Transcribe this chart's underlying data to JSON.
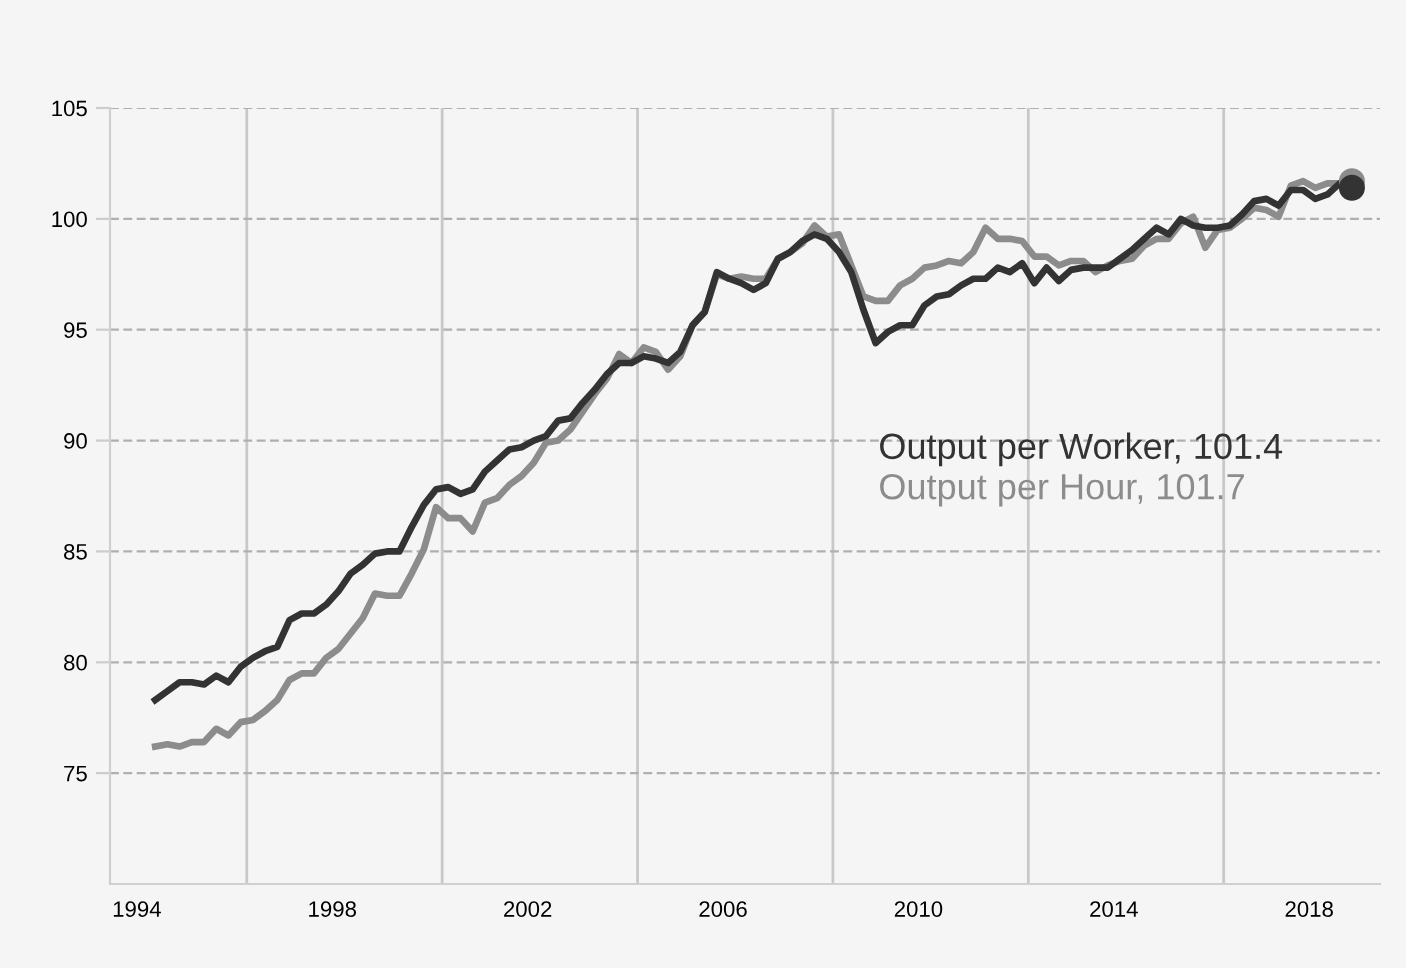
{
  "chart_data": {
    "type": "line",
    "x": [
      1994.375,
      1994.625,
      1994.875,
      1995.125,
      1995.375,
      1995.625,
      1995.875,
      1996.125,
      1996.375,
      1996.625,
      1996.875,
      1997.125,
      1997.375,
      1997.625,
      1997.875,
      1998.125,
      1998.375,
      1998.625,
      1998.875,
      1999.125,
      1999.375,
      1999.625,
      1999.875,
      2000.125,
      2000.375,
      2000.625,
      2000.875,
      2001.125,
      2001.375,
      2001.625,
      2001.875,
      2002.125,
      2002.375,
      2002.625,
      2002.875,
      2003.125,
      2003.375,
      2003.625,
      2003.875,
      2004.125,
      2004.375,
      2004.625,
      2004.875,
      2005.125,
      2005.375,
      2005.625,
      2005.875,
      2006.125,
      2006.375,
      2006.625,
      2006.875,
      2007.125,
      2007.375,
      2007.625,
      2007.875,
      2008.125,
      2008.375,
      2008.625,
      2008.875,
      2009.125,
      2009.375,
      2009.625,
      2009.875,
      2010.125,
      2010.375,
      2010.625,
      2010.875,
      2011.125,
      2011.375,
      2011.625,
      2011.875,
      2012.125,
      2012.375,
      2012.625,
      2012.875,
      2013.125,
      2013.375,
      2013.625,
      2013.875,
      2014.125,
      2014.375,
      2014.625,
      2014.875,
      2015.125,
      2015.375,
      2015.625,
      2015.875,
      2016.125,
      2016.375,
      2016.625,
      2016.875,
      2017.125,
      2017.375,
      2017.625,
      2017.875,
      2018.125,
      2018.375,
      2018.625,
      2018.875
    ],
    "series": [
      {
        "name": "Output per Hour, 101.7",
        "color": "#8c8c8c",
        "values": [
          76.2,
          76.3,
          76.2,
          76.4,
          76.4,
          77.0,
          76.7,
          77.3,
          77.4,
          77.8,
          78.3,
          79.2,
          79.5,
          79.5,
          80.2,
          80.6,
          81.3,
          82.0,
          83.1,
          83.0,
          83.0,
          84.0,
          85.1,
          87.0,
          86.5,
          86.5,
          85.9,
          87.2,
          87.4,
          88.0,
          88.4,
          89.0,
          89.9,
          90.0,
          90.5,
          91.3,
          92.1,
          92.8,
          93.9,
          93.5,
          94.2,
          94.0,
          93.2,
          93.8,
          95.2,
          95.8,
          97.5,
          97.3,
          97.4,
          97.3,
          97.3,
          98.2,
          98.5,
          98.9,
          99.7,
          99.2,
          99.3,
          97.9,
          96.5,
          96.3,
          96.3,
          97.0,
          97.3,
          97.8,
          97.9,
          98.1,
          98.0,
          98.5,
          99.6,
          99.1,
          99.1,
          99.0,
          98.3,
          98.3,
          97.9,
          98.1,
          98.1,
          97.6,
          97.9,
          98.1,
          98.2,
          98.8,
          99.1,
          99.1,
          99.8,
          100.1,
          98.7,
          99.5,
          99.6,
          100.0,
          100.5,
          100.4,
          100.1,
          101.5,
          101.7,
          101.4,
          101.6,
          101.6,
          101.7
        ]
      },
      {
        "name": "Output per Worker, 101.4",
        "color": "#333333",
        "values": [
          78.3,
          78.7,
          79.1,
          79.1,
          79.0,
          79.4,
          79.1,
          79.8,
          80.2,
          80.5,
          80.7,
          81.9,
          82.2,
          82.2,
          82.6,
          83.2,
          84.0,
          84.4,
          84.9,
          85.0,
          85.0,
          86.1,
          87.1,
          87.8,
          87.9,
          87.6,
          87.8,
          88.6,
          89.1,
          89.6,
          89.7,
          90.0,
          90.2,
          90.9,
          91.0,
          91.7,
          92.3,
          93.0,
          93.5,
          93.5,
          93.8,
          93.7,
          93.5,
          94.0,
          95.2,
          95.8,
          97.6,
          97.3,
          97.1,
          96.8,
          97.1,
          98.2,
          98.5,
          99.0,
          99.3,
          99.1,
          98.5,
          97.6,
          95.9,
          94.4,
          94.9,
          95.2,
          95.2,
          96.1,
          96.5,
          96.6,
          97.0,
          97.3,
          97.3,
          97.8,
          97.6,
          98.0,
          97.1,
          97.8,
          97.2,
          97.7,
          97.8,
          97.8,
          97.8,
          98.2,
          98.6,
          99.1,
          99.6,
          99.3,
          100.0,
          99.7,
          99.6,
          99.6,
          99.7,
          100.2,
          100.8,
          100.9,
          100.6,
          101.3,
          101.3,
          100.9,
          101.1,
          101.6,
          101.4
        ]
      },
      {
        "type": "scatter",
        "marker": "circle",
        "x": [
          2018.875
        ],
        "color": "#8c8c8c",
        "values": [
          101.7
        ]
      },
      {
        "type": "scatter",
        "marker": "circle",
        "x": [
          2018.875
        ],
        "color": "#333333",
        "values": [
          101.4
        ]
      }
    ],
    "xlim": [
      1993.45,
      2019.45
    ],
    "xticks": [
      {
        "value": 1994,
        "label": "1994"
      },
      {
        "value": 1996.25,
        "label": null
      },
      {
        "value": 1998,
        "label": "1998"
      },
      {
        "value": 2000.25,
        "label": null
      },
      {
        "value": 2002,
        "label": "2002"
      },
      {
        "value": 2004.25,
        "label": null
      },
      {
        "value": 2006,
        "label": "2006"
      },
      {
        "value": 2008.25,
        "label": null
      },
      {
        "value": 2010,
        "label": "2010"
      },
      {
        "value": 2012.25,
        "label": null
      },
      {
        "value": 2014,
        "label": "2014"
      },
      {
        "value": 2016.25,
        "label": null
      },
      {
        "value": 2018,
        "label": "2018"
      }
    ],
    "ylim": [
      70,
      105
    ],
    "yticks": [
      75,
      80,
      85,
      90,
      95,
      100,
      105
    ],
    "grid": true,
    "legend": false,
    "marker": "none",
    "line_style": "solid"
  }
}
